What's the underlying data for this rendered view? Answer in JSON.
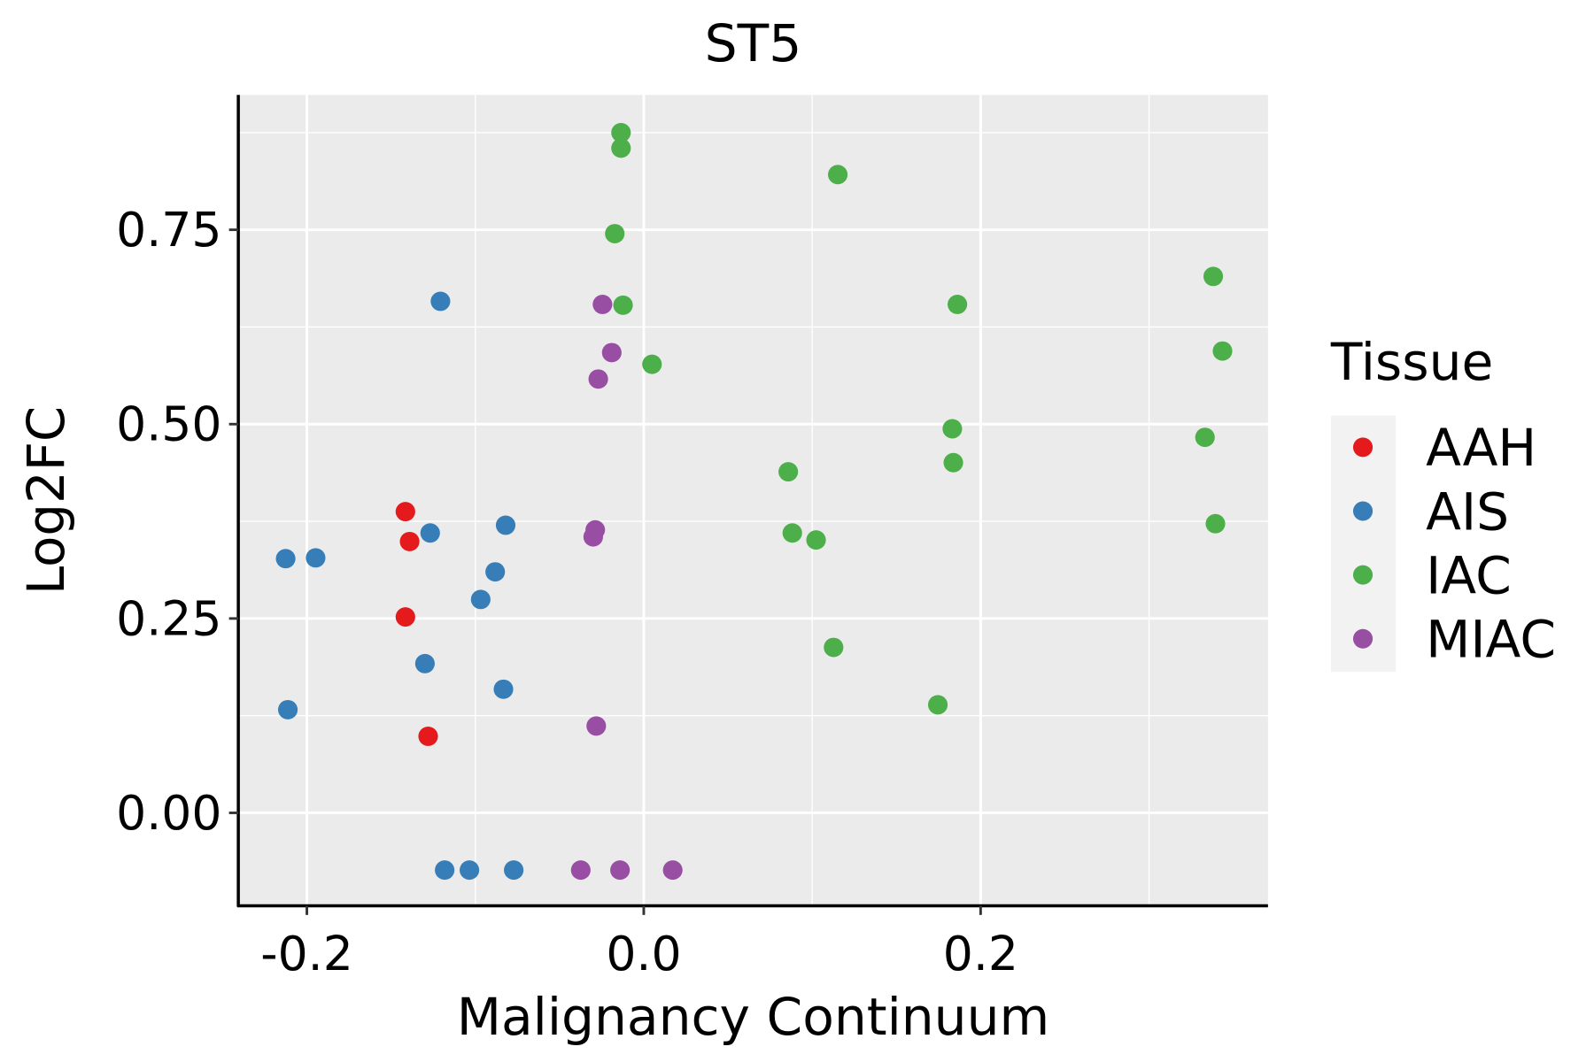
{
  "chart_data": {
    "type": "scatter",
    "title": "ST5",
    "xlabel": "Malignancy Continuum",
    "ylabel": "Log2FC",
    "xlim": [
      -0.2407,
      0.3706
    ],
    "ylim": [
      -0.1195,
      0.9234
    ],
    "xticks": [
      -0.2,
      0.0,
      0.2
    ],
    "xtick_labels": [
      "-0.2",
      "0.0",
      "0.2"
    ],
    "xminor": [
      -0.1,
      0.1,
      0.3
    ],
    "yticks": [
      0.0,
      0.25,
      0.5,
      0.75
    ],
    "ytick_labels": [
      "0.00",
      "0.25",
      "0.50",
      "0.75"
    ],
    "yminor": [
      0.125,
      0.375,
      0.625,
      0.875
    ],
    "grid": true,
    "legend": {
      "title": "Tissue",
      "placement": "right"
    },
    "series": [
      {
        "name": "AAH",
        "color": "#E41A1C",
        "points": [
          [
            -0.1415,
            0.3875
          ],
          [
            -0.139,
            0.349
          ],
          [
            -0.1415,
            0.252
          ],
          [
            -0.128,
            0.0985
          ]
        ]
      },
      {
        "name": "AIS",
        "color": "#377EB8",
        "points": [
          [
            -0.1207,
            0.658
          ],
          [
            -0.1268,
            0.36
          ],
          [
            -0.082,
            0.37
          ],
          [
            -0.2126,
            0.327
          ],
          [
            -0.1948,
            0.328
          ],
          [
            -0.0882,
            0.31
          ],
          [
            -0.0968,
            0.2745
          ],
          [
            -0.1299,
            0.192
          ],
          [
            -0.0833,
            0.159
          ],
          [
            -0.2113,
            0.1327
          ],
          [
            -0.1182,
            -0.0736
          ],
          [
            -0.1035,
            -0.0736
          ],
          [
            -0.0772,
            -0.0736
          ]
        ]
      },
      {
        "name": "IAC",
        "color": "#4DAF4A",
        "points": [
          [
            -0.0135,
            0.875
          ],
          [
            -0.0135,
            0.855
          ],
          [
            0.1152,
            0.821
          ],
          [
            -0.0172,
            0.745
          ],
          [
            -0.0123,
            0.653
          ],
          [
            0.0049,
            0.577
          ],
          [
            0.1862,
            0.654
          ],
          [
            0.3381,
            0.69
          ],
          [
            0.3436,
            0.594
          ],
          [
            0.1832,
            0.494
          ],
          [
            0.1838,
            0.4505
          ],
          [
            0.3332,
            0.483
          ],
          [
            0.3394,
            0.372
          ],
          [
            0.0858,
            0.4387
          ],
          [
            0.0882,
            0.36
          ],
          [
            0.1023,
            0.351
          ],
          [
            0.1127,
            0.2128
          ],
          [
            0.1746,
            0.139
          ]
        ]
      },
      {
        "name": "MIAC",
        "color": "#984EA3",
        "points": [
          [
            -0.0245,
            0.654
          ],
          [
            -0.019,
            0.592
          ],
          [
            -0.027,
            0.558
          ],
          [
            -0.0288,
            0.364
          ],
          [
            -0.03,
            0.355
          ],
          [
            -0.0282,
            0.1117
          ],
          [
            -0.0374,
            -0.0736
          ],
          [
            -0.0141,
            -0.0736
          ],
          [
            0.0172,
            -0.0736
          ]
        ]
      }
    ]
  }
}
